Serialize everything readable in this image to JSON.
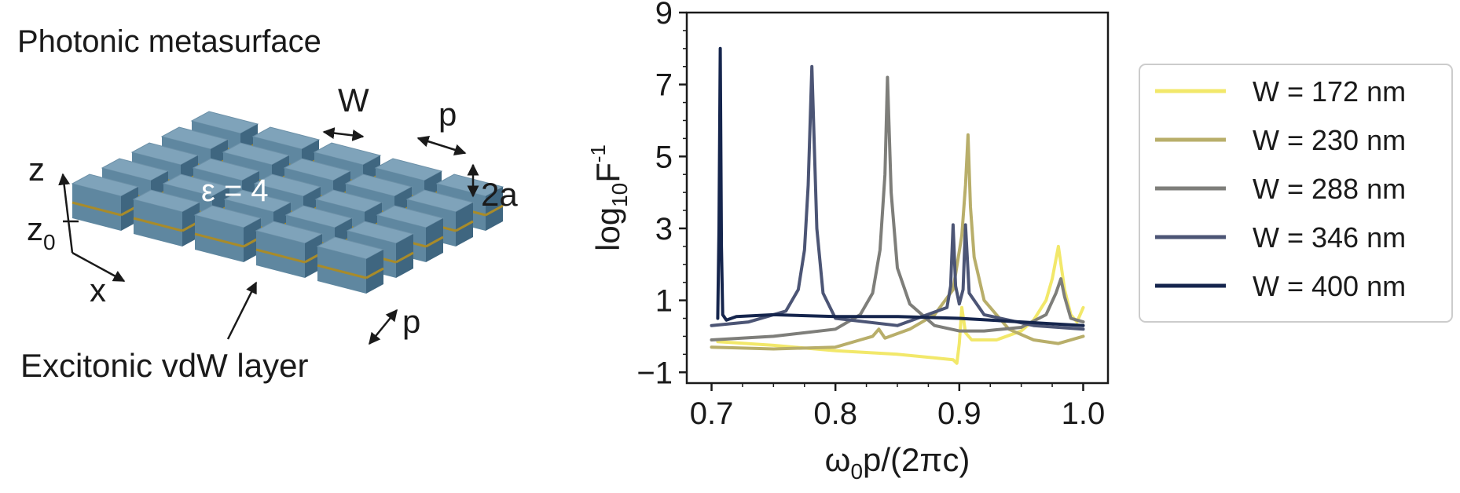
{
  "schematic": {
    "title": "Photonic metasurface",
    "width_label": "W",
    "period_label": "p",
    "height_label": "2a",
    "permittivity_label": "ε = 4",
    "axis_z": "z",
    "axis_z0": "z",
    "axis_z0_sub": "0",
    "axis_x": "x",
    "period_label_bottom": "p",
    "layer_label": "Excitonic vdW layer"
  },
  "colors": {
    "block_top": "#7fa3ba",
    "block_front": "#5f87a0",
    "block_side": "#3f6680",
    "layer": "#a88b2a"
  },
  "chart_data": {
    "type": "line",
    "title": "",
    "xlabel": "ω₀p/(2πc)",
    "xlabel_main": "ω",
    "xlabel_sub": "0",
    "xlabel_rest": "p/(2πc)",
    "ylabel_main": "log",
    "ylabel_sub": "10",
    "ylabel_F": "F",
    "ylabel_sup": "-1",
    "xlim": [
      0.68,
      1.02
    ],
    "ylim": [
      -1.3,
      9.0
    ],
    "xticks": [
      0.7,
      0.8,
      0.9,
      1.0
    ],
    "xtick_labels": [
      "0.7",
      "0.8",
      "0.9",
      "1.0"
    ],
    "yticks": [
      -1,
      1,
      3,
      5,
      7,
      9
    ],
    "ytick_labels": [
      "−1",
      "1",
      "3",
      "5",
      "7",
      "9"
    ],
    "legend_position": "right",
    "series": [
      {
        "name": "W = 172 nm",
        "color": "#f2e86a",
        "x": [
          0.705,
          0.72,
          0.75,
          0.8,
          0.85,
          0.88,
          0.895,
          0.898,
          0.9,
          0.902,
          0.905,
          0.91,
          0.93,
          0.95,
          0.96,
          0.97,
          0.975,
          0.98,
          0.985,
          0.99,
          0.995,
          1.0
        ],
        "y": [
          -0.15,
          -0.18,
          -0.25,
          -0.4,
          -0.5,
          -0.6,
          -0.65,
          -0.75,
          -0.2,
          0.8,
          0.1,
          -0.1,
          -0.1,
          0.15,
          0.45,
          1.0,
          1.6,
          2.5,
          1.3,
          0.6,
          0.4,
          0.8
        ]
      },
      {
        "name": "W = 230 nm",
        "color": "#b8ae6a",
        "x": [
          0.7,
          0.75,
          0.8,
          0.82,
          0.83,
          0.835,
          0.84,
          0.86,
          0.88,
          0.895,
          0.902,
          0.905,
          0.907,
          0.909,
          0.912,
          0.92,
          0.94,
          0.96,
          0.98,
          1.0
        ],
        "y": [
          -0.3,
          -0.35,
          -0.3,
          -0.1,
          0.0,
          0.2,
          -0.05,
          0.2,
          0.6,
          1.3,
          2.8,
          4.2,
          5.6,
          3.6,
          2.2,
          1.0,
          0.2,
          -0.1,
          -0.2,
          0.0
        ]
      },
      {
        "name": "W = 288 nm",
        "color": "#7e7e7a",
        "x": [
          0.7,
          0.75,
          0.8,
          0.82,
          0.83,
          0.836,
          0.84,
          0.842,
          0.845,
          0.85,
          0.86,
          0.88,
          0.9,
          0.92,
          0.95,
          0.97,
          0.978,
          0.982,
          0.985,
          0.99,
          1.0
        ],
        "y": [
          -0.1,
          0.0,
          0.2,
          0.6,
          1.2,
          2.4,
          4.5,
          7.2,
          4.0,
          1.9,
          0.9,
          0.3,
          0.15,
          0.15,
          0.25,
          0.6,
          1.2,
          1.6,
          1.1,
          0.5,
          0.4
        ]
      },
      {
        "name": "W = 346 nm",
        "color": "#4c5575",
        "x": [
          0.7,
          0.73,
          0.76,
          0.77,
          0.775,
          0.778,
          0.781,
          0.785,
          0.79,
          0.8,
          0.85,
          0.89,
          0.893,
          0.895,
          0.897,
          0.9,
          0.903,
          0.905,
          0.908,
          0.92,
          0.96,
          1.0
        ],
        "y": [
          0.3,
          0.4,
          0.7,
          1.3,
          2.4,
          4.2,
          7.5,
          3.0,
          1.2,
          0.5,
          0.3,
          0.8,
          1.4,
          3.1,
          1.4,
          0.9,
          1.3,
          3.1,
          1.2,
          0.6,
          0.3,
          0.2
        ]
      },
      {
        "name": "W = 400 nm",
        "color": "#15254d",
        "x": [
          0.705,
          0.706,
          0.707,
          0.708,
          0.709,
          0.712,
          0.72,
          0.75,
          0.8,
          0.85,
          0.9,
          0.95,
          1.0
        ],
        "y": [
          0.5,
          3.0,
          8.0,
          2.5,
          0.6,
          0.45,
          0.55,
          0.6,
          0.55,
          0.55,
          0.5,
          0.4,
          0.3
        ]
      }
    ]
  }
}
